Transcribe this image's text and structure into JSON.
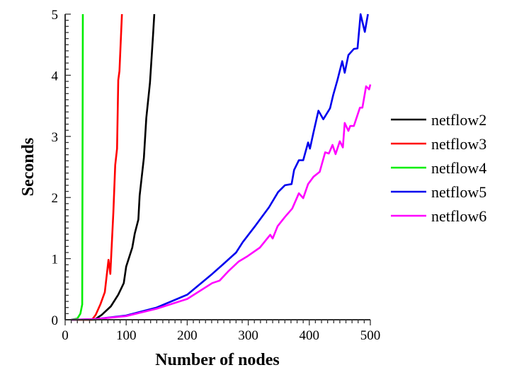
{
  "chart_data": {
    "type": "line",
    "title": "",
    "xlabel": "Number of nodes",
    "ylabel": "Seconds",
    "xlim": [
      0,
      500
    ],
    "ylim": [
      0,
      5
    ],
    "xticks": [
      0,
      100,
      200,
      300,
      400,
      500
    ],
    "yticks": [
      0,
      1,
      2,
      3,
      4,
      5
    ],
    "x_minor_step": 10,
    "y_minor_step": 0.1,
    "grid": false,
    "legend_position": "right",
    "series": [
      {
        "name": "netflow2",
        "color": "#000000",
        "points": [
          [
            10,
            0
          ],
          [
            48,
            0
          ],
          [
            60,
            0.08
          ],
          [
            75,
            0.22
          ],
          [
            87,
            0.41
          ],
          [
            96,
            0.6
          ],
          [
            100,
            0.87
          ],
          [
            110,
            1.18
          ],
          [
            114,
            1.41
          ],
          [
            120,
            1.64
          ],
          [
            122,
            2.03
          ],
          [
            129,
            2.65
          ],
          [
            133,
            3.3
          ],
          [
            139,
            3.88
          ],
          [
            144,
            4.65
          ],
          [
            146,
            5
          ]
        ]
      },
      {
        "name": "netflow3",
        "color": "#ff0000",
        "points": [
          [
            10,
            0
          ],
          [
            44,
            0
          ],
          [
            50,
            0.08
          ],
          [
            57.6,
            0.25
          ],
          [
            65,
            0.45
          ],
          [
            71,
            0.98
          ],
          [
            74,
            0.75
          ],
          [
            79,
            1.76
          ],
          [
            82,
            2.53
          ],
          [
            85,
            2.8
          ],
          [
            87,
            3.92
          ],
          [
            89,
            4.07
          ],
          [
            93,
            5
          ]
        ]
      },
      {
        "name": "netflow4",
        "color": "#00ee00",
        "points": [
          [
            10,
            0
          ],
          [
            20,
            0.02
          ],
          [
            25,
            0.1
          ],
          [
            28,
            0.25
          ],
          [
            29,
            5
          ]
        ]
      },
      {
        "name": "netflow5",
        "color": "#0000ee",
        "points": [
          [
            10,
            0
          ],
          [
            50,
            0.01
          ],
          [
            100,
            0.07
          ],
          [
            150,
            0.2
          ],
          [
            200,
            0.41
          ],
          [
            241,
            0.75
          ],
          [
            259,
            0.91
          ],
          [
            280,
            1.1
          ],
          [
            291,
            1.27
          ],
          [
            311,
            1.53
          ],
          [
            334,
            1.84
          ],
          [
            349,
            2.09
          ],
          [
            360,
            2.2
          ],
          [
            371,
            2.22
          ],
          [
            375,
            2.45
          ],
          [
            383,
            2.61
          ],
          [
            390,
            2.61
          ],
          [
            398,
            2.9
          ],
          [
            401,
            2.8
          ],
          [
            407,
            3.07
          ],
          [
            415,
            3.42
          ],
          [
            423,
            3.28
          ],
          [
            434,
            3.46
          ],
          [
            439,
            3.67
          ],
          [
            446,
            3.92
          ],
          [
            454,
            4.23
          ],
          [
            458,
            4.04
          ],
          [
            464,
            4.33
          ],
          [
            473,
            4.43
          ],
          [
            479,
            4.44
          ],
          [
            484,
            5
          ],
          [
            491,
            4.71
          ],
          [
            496,
            5
          ]
        ]
      },
      {
        "name": "netflow6",
        "color": "#ff00ff",
        "points": [
          [
            10,
            0
          ],
          [
            50,
            0.01
          ],
          [
            100,
            0.06
          ],
          [
            150,
            0.18
          ],
          [
            200,
            0.34
          ],
          [
            241,
            0.6
          ],
          [
            253,
            0.64
          ],
          [
            268,
            0.8
          ],
          [
            284,
            0.95
          ],
          [
            299,
            1.04
          ],
          [
            319,
            1.18
          ],
          [
            336,
            1.39
          ],
          [
            340,
            1.33
          ],
          [
            348,
            1.53
          ],
          [
            360,
            1.68
          ],
          [
            372,
            1.82
          ],
          [
            383,
            2.07
          ],
          [
            390,
            1.99
          ],
          [
            398,
            2.22
          ],
          [
            407,
            2.34
          ],
          [
            417,
            2.42
          ],
          [
            426,
            2.74
          ],
          [
            432,
            2.72
          ],
          [
            438,
            2.86
          ],
          [
            443,
            2.71
          ],
          [
            450,
            2.92
          ],
          [
            455,
            2.82
          ],
          [
            458,
            3.22
          ],
          [
            464,
            3.09
          ],
          [
            467,
            3.17
          ],
          [
            473,
            3.17
          ],
          [
            483,
            3.47
          ],
          [
            487,
            3.47
          ],
          [
            493,
            3.82
          ],
          [
            498,
            3.77
          ],
          [
            500,
            3.85
          ]
        ]
      }
    ]
  }
}
